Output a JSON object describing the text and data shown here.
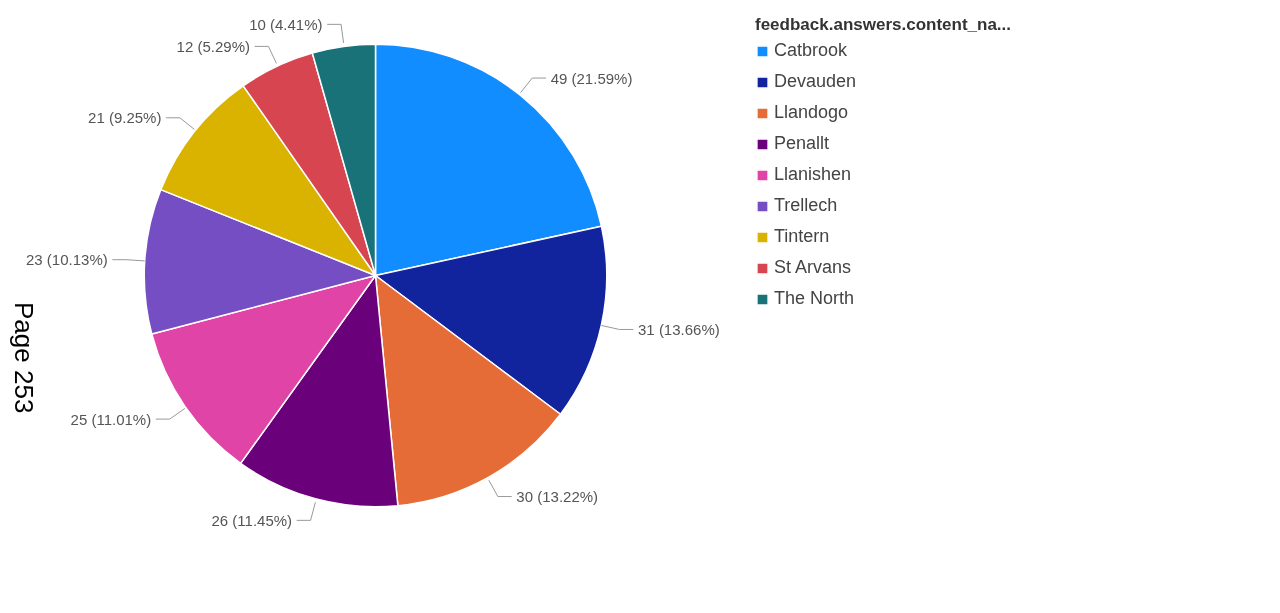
{
  "chart_data": {
    "type": "pie",
    "categories": [
      "Catbrook",
      "Devauden",
      "Llandogo",
      "Penallt",
      "Llanishen",
      "Trellech",
      "Tintern",
      "St Arvans",
      "The North"
    ],
    "values": [
      49,
      31,
      30,
      26,
      25,
      23,
      21,
      12,
      10
    ],
    "colors": [
      "#118dff",
      "#12239e",
      "#e66c37",
      "#6b007b",
      "#e044a7",
      "#744ec2",
      "#d9b300",
      "#d64550",
      "#197278"
    ],
    "value_labels": [
      "49 (21.59%)",
      "31 (13.66%)",
      "30 (13.22%)",
      "26 (11.45%)",
      "25 (11.01%)",
      "23 (10.13%)",
      "21 (9.25%)",
      "12 (5.29%)",
      "10 (4.41%)"
    ],
    "legend_title": "feedback.answers.content_na...",
    "legend": "right",
    "annotations": [
      "Page 253"
    ]
  }
}
